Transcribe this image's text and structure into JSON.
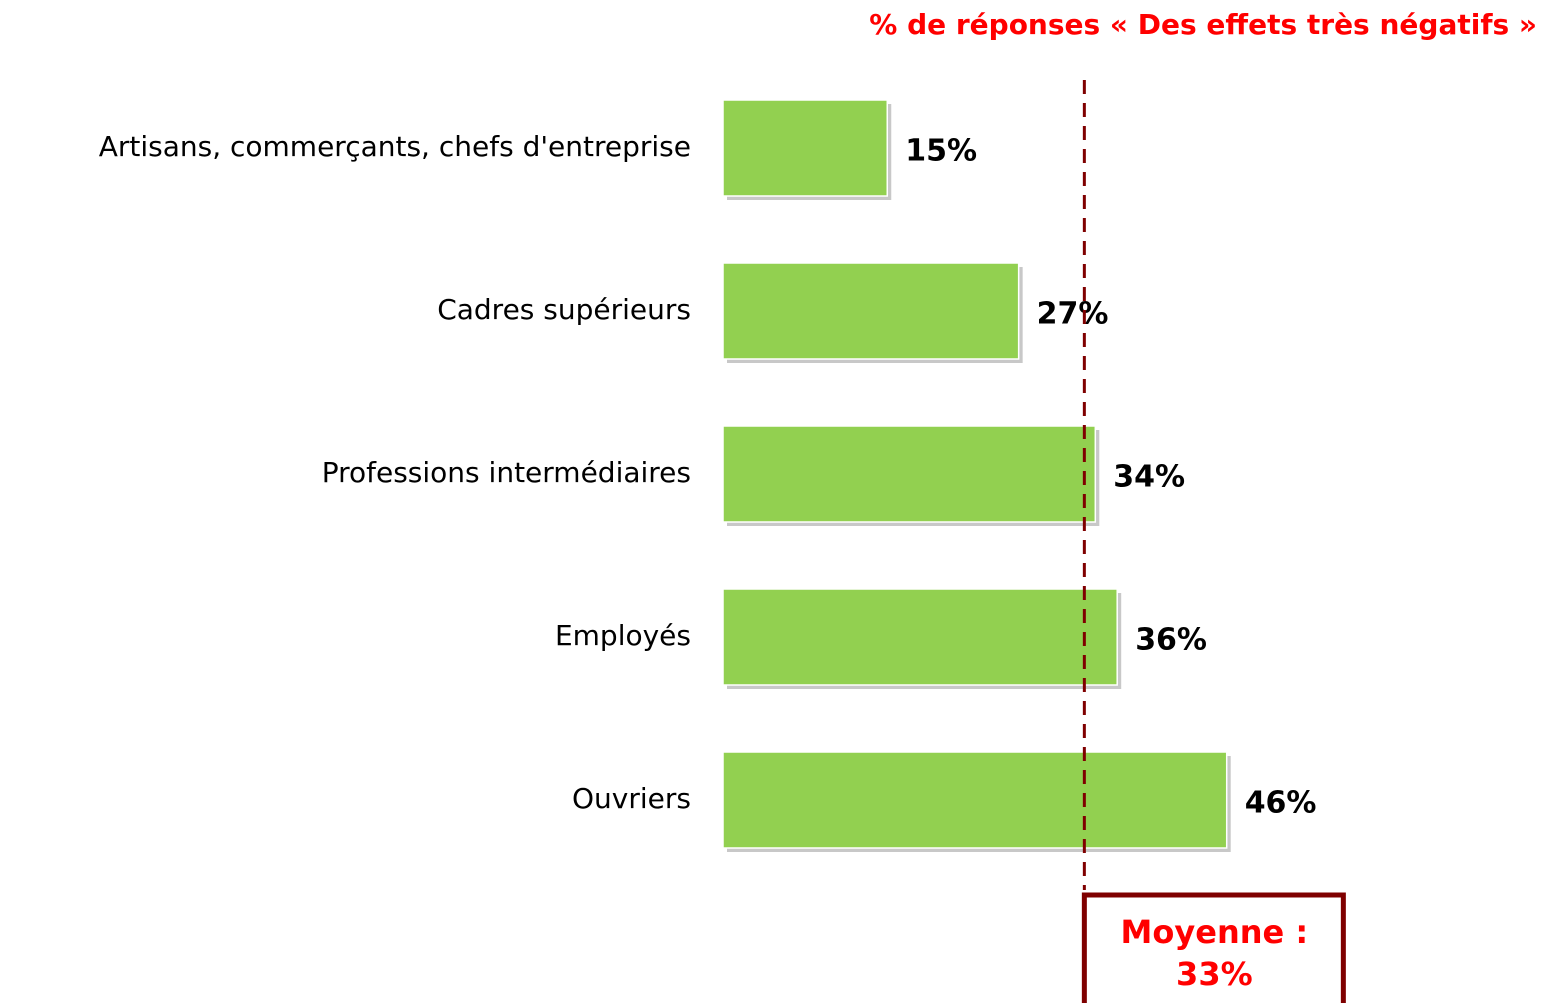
{
  "chart_data": {
    "type": "bar",
    "orientation": "horizontal",
    "title": "% de réponses « Des effets très négatifs »",
    "categories": [
      "Artisans, commerçants, chefs d'entreprise",
      "Cadres supérieurs",
      "Professions intermédiaires",
      "Employés",
      "Ouvriers"
    ],
    "values": [
      15,
      27,
      34,
      36,
      46
    ],
    "value_labels": [
      "15%",
      "27%",
      "34%",
      "36%",
      "46%"
    ],
    "color": "#92d050",
    "average": {
      "label": "Moyenne :",
      "value": 33,
      "value_label": "33%",
      "color": "#7f0000"
    }
  }
}
